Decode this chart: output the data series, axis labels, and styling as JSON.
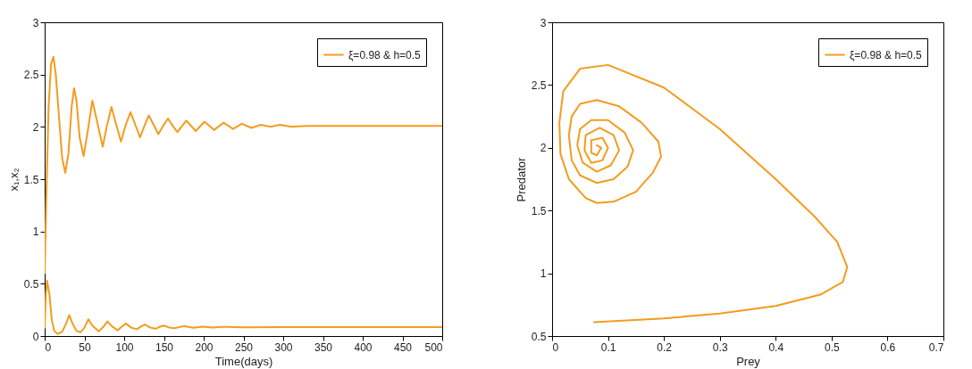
{
  "chart_data": [
    {
      "type": "line",
      "xlabel": "Time(days)",
      "ylabel": "x₁,x₂",
      "xlim": [
        0,
        500
      ],
      "ylim": [
        0,
        3
      ],
      "xticks": [
        0,
        50,
        100,
        150,
        200,
        250,
        300,
        350,
        400,
        450,
        500
      ],
      "yticks": [
        0,
        0.5,
        1,
        1.5,
        2,
        2.5,
        3
      ],
      "grid": false,
      "legend": "top right",
      "marker": "none",
      "line_style": "solid",
      "series": [
        {
          "name": "ξ=0.98 & h=0.5",
          "color": "#f39c1e",
          "x": [
            0,
            2,
            5,
            8,
            11,
            14,
            18,
            22,
            26,
            30,
            34,
            37,
            40,
            44,
            49,
            54,
            60,
            66,
            73,
            78,
            84,
            90,
            96,
            102,
            108,
            114,
            120,
            126,
            131,
            137,
            143,
            149,
            155,
            161,
            167,
            178,
            190,
            201,
            213,
            225,
            237,
            248,
            260,
            272,
            284,
            296,
            310,
            330,
            400,
            500
          ],
          "values": [
            0.6,
            1.3,
            2.2,
            2.6,
            2.67,
            2.5,
            2.1,
            1.7,
            1.56,
            1.75,
            2.2,
            2.37,
            2.25,
            1.9,
            1.72,
            1.95,
            2.25,
            2.05,
            1.81,
            2.0,
            2.19,
            2.02,
            1.86,
            2.02,
            2.14,
            2.02,
            1.9,
            2.02,
            2.11,
            2.02,
            1.93,
            2.01,
            2.08,
            2.01,
            1.95,
            2.06,
            1.96,
            2.05,
            1.97,
            2.04,
            1.98,
            2.03,
            1.99,
            2.02,
            2.0,
            2.02,
            2.0,
            2.01,
            2.01,
            2.01
          ]
        },
        {
          "color": "#f39c1e",
          "x": [
            0,
            1.5,
            3,
            6,
            9,
            12,
            16,
            22,
            27,
            31,
            35,
            40,
            45,
            50,
            55,
            60,
            68,
            74,
            79,
            85,
            92,
            97,
            102,
            109,
            116,
            121,
            126,
            133,
            140,
            145,
            150,
            157,
            163,
            175,
            187,
            199,
            211,
            223,
            250,
            300,
            500
          ],
          "values": [
            0.08,
            0.4,
            0.53,
            0.4,
            0.15,
            0.05,
            0.02,
            0.04,
            0.12,
            0.2,
            0.12,
            0.05,
            0.035,
            0.08,
            0.16,
            0.1,
            0.045,
            0.09,
            0.14,
            0.09,
            0.055,
            0.09,
            0.12,
            0.08,
            0.065,
            0.09,
            0.11,
            0.08,
            0.07,
            0.09,
            0.1,
            0.08,
            0.075,
            0.095,
            0.078,
            0.09,
            0.08,
            0.088,
            0.083,
            0.085,
            0.085
          ]
        }
      ]
    },
    {
      "type": "line",
      "xlabel": "Prey",
      "ylabel": "Predator",
      "xlim": [
        0,
        0.7
      ],
      "ylim": [
        0.5,
        3
      ],
      "xticks": [
        0,
        0.1,
        0.2,
        0.3,
        0.4,
        0.5,
        0.6,
        0.7
      ],
      "yticks": [
        0.5,
        1,
        1.5,
        2,
        2.5,
        3
      ],
      "grid": false,
      "legend": "top right",
      "marker": "none",
      "line_style": "solid",
      "series": [
        {
          "name": "ξ=0.98 & h=0.5",
          "color": "#f39c1e",
          "x": [
            0.075,
            0.2,
            0.3,
            0.4,
            0.48,
            0.52,
            0.528,
            0.51,
            0.47,
            0.4,
            0.3,
            0.2,
            0.1,
            0.05,
            0.02,
            0.013,
            0.015,
            0.03,
            0.06,
            0.08,
            0.11,
            0.15,
            0.18,
            0.195,
            0.19,
            0.16,
            0.12,
            0.08,
            0.05,
            0.035,
            0.03,
            0.035,
            0.05,
            0.08,
            0.11,
            0.135,
            0.145,
            0.13,
            0.1,
            0.07,
            0.05,
            0.045,
            0.055,
            0.08,
            0.105,
            0.12,
            0.11,
            0.085,
            0.06,
            0.058,
            0.07,
            0.09,
            0.1,
            0.09,
            0.07,
            0.07,
            0.08,
            0.088,
            0.08
          ],
          "values": [
            0.61,
            0.64,
            0.68,
            0.74,
            0.83,
            0.93,
            1.05,
            1.25,
            1.45,
            1.75,
            2.15,
            2.48,
            2.66,
            2.63,
            2.45,
            2.2,
            1.95,
            1.75,
            1.6,
            1.56,
            1.57,
            1.65,
            1.8,
            1.93,
            2.05,
            2.2,
            2.33,
            2.38,
            2.35,
            2.25,
            2.1,
            1.9,
            1.78,
            1.72,
            1.75,
            1.85,
            1.98,
            2.12,
            2.22,
            2.22,
            2.15,
            2.02,
            1.88,
            1.81,
            1.86,
            1.98,
            2.1,
            2.16,
            2.1,
            1.98,
            1.88,
            1.9,
            2.0,
            2.08,
            2.06,
            1.96,
            1.94,
            2.0,
            2.02
          ]
        }
      ]
    }
  ]
}
